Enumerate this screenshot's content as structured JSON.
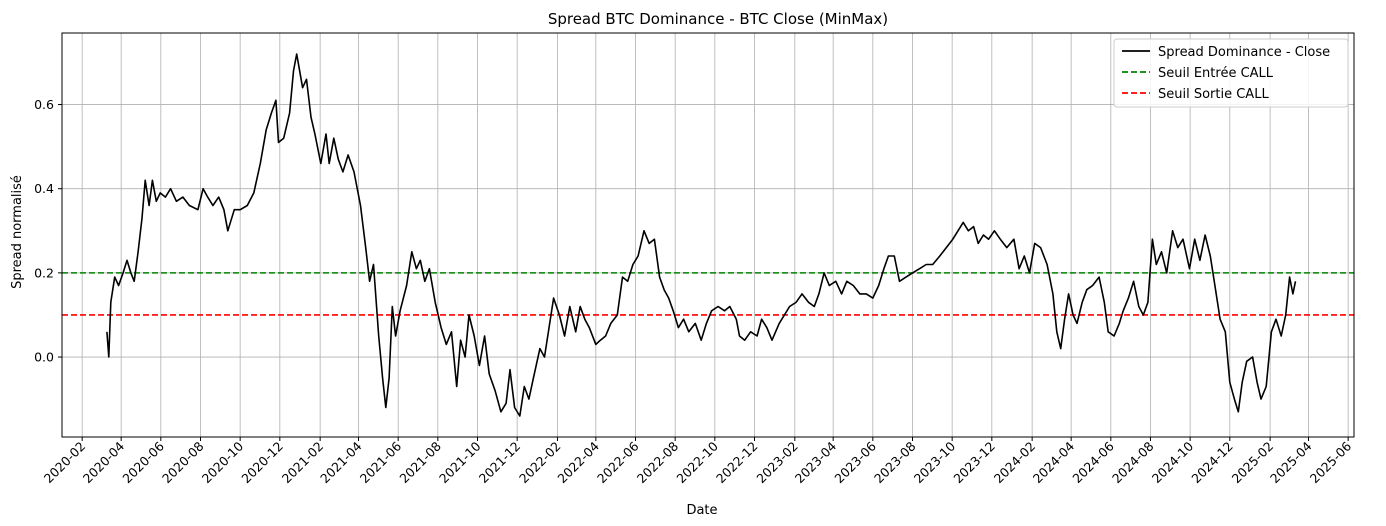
{
  "chart_data": {
    "type": "line",
    "title": "Spread BTC Dominance - BTC Close (MinMax)",
    "xlabel": "Date",
    "ylabel": "Spread normalisé",
    "xlim": [
      "2020-01-01",
      "2025-06-10"
    ],
    "ylim": [
      -0.19,
      0.77
    ],
    "grid": true,
    "legend_position": "top-right",
    "x_ticks": [
      "2020-02",
      "2020-04",
      "2020-06",
      "2020-08",
      "2020-10",
      "2020-12",
      "2021-02",
      "2021-04",
      "2021-06",
      "2021-08",
      "2021-10",
      "2021-12",
      "2022-02",
      "2022-04",
      "2022-06",
      "2022-08",
      "2022-10",
      "2022-12",
      "2023-02",
      "2023-04",
      "2023-06",
      "2023-08",
      "2023-10",
      "2023-12",
      "2024-02",
      "2024-04",
      "2024-06",
      "2024-08",
      "2024-10",
      "2024-12",
      "2025-02",
      "2025-04",
      "2025-06"
    ],
    "y_ticks": [
      0.0,
      0.2,
      0.4,
      0.6
    ],
    "y_tick_labels": [
      "0.0",
      "0.2",
      "0.4",
      "0.6"
    ],
    "series": [
      {
        "name": "Spread Dominance - Close",
        "color": "#000000",
        "style": "solid",
        "points": [
          [
            "2020-03-10",
            0.06
          ],
          [
            "2020-03-13",
            0.0
          ],
          [
            "2020-03-16",
            0.13
          ],
          [
            "2020-03-22",
            0.19
          ],
          [
            "2020-03-28",
            0.17
          ],
          [
            "2020-04-04",
            0.2
          ],
          [
            "2020-04-10",
            0.23
          ],
          [
            "2020-04-16",
            0.2
          ],
          [
            "2020-04-21",
            0.18
          ],
          [
            "2020-04-27",
            0.25
          ],
          [
            "2020-05-03",
            0.33
          ],
          [
            "2020-05-08",
            0.42
          ],
          [
            "2020-05-14",
            0.36
          ],
          [
            "2020-05-19",
            0.42
          ],
          [
            "2020-05-25",
            0.37
          ],
          [
            "2020-05-31",
            0.39
          ],
          [
            "2020-06-08",
            0.38
          ],
          [
            "2020-06-16",
            0.4
          ],
          [
            "2020-06-25",
            0.37
          ],
          [
            "2020-07-05",
            0.38
          ],
          [
            "2020-07-15",
            0.36
          ],
          [
            "2020-07-28",
            0.35
          ],
          [
            "2020-08-05",
            0.4
          ],
          [
            "2020-08-12",
            0.38
          ],
          [
            "2020-08-20",
            0.36
          ],
          [
            "2020-08-29",
            0.38
          ],
          [
            "2020-09-06",
            0.35
          ],
          [
            "2020-09-12",
            0.3
          ],
          [
            "2020-09-22",
            0.35
          ],
          [
            "2020-10-01",
            0.35
          ],
          [
            "2020-10-12",
            0.36
          ],
          [
            "2020-10-22",
            0.39
          ],
          [
            "2020-11-01",
            0.46
          ],
          [
            "2020-11-10",
            0.54
          ],
          [
            "2020-11-18",
            0.58
          ],
          [
            "2020-11-25",
            0.61
          ],
          [
            "2020-11-29",
            0.51
          ],
          [
            "2020-12-07",
            0.52
          ],
          [
            "2020-12-16",
            0.58
          ],
          [
            "2020-12-22",
            0.68
          ],
          [
            "2020-12-27",
            0.72
          ],
          [
            "2021-01-05",
            0.64
          ],
          [
            "2021-01-11",
            0.66
          ],
          [
            "2021-01-18",
            0.57
          ],
          [
            "2021-01-24",
            0.53
          ],
          [
            "2021-02-02",
            0.46
          ],
          [
            "2021-02-10",
            0.53
          ],
          [
            "2021-02-15",
            0.46
          ],
          [
            "2021-02-22",
            0.52
          ],
          [
            "2021-03-01",
            0.47
          ],
          [
            "2021-03-08",
            0.44
          ],
          [
            "2021-03-16",
            0.48
          ],
          [
            "2021-03-25",
            0.44
          ],
          [
            "2021-04-04",
            0.36
          ],
          [
            "2021-04-12",
            0.26
          ],
          [
            "2021-04-18",
            0.18
          ],
          [
            "2021-04-24",
            0.22
          ],
          [
            "2021-05-02",
            0.05
          ],
          [
            "2021-05-08",
            -0.05
          ],
          [
            "2021-05-13",
            -0.12
          ],
          [
            "2021-05-18",
            -0.05
          ],
          [
            "2021-05-23",
            0.12
          ],
          [
            "2021-05-28",
            0.05
          ],
          [
            "2021-06-04",
            0.11
          ],
          [
            "2021-06-14",
            0.17
          ],
          [
            "2021-06-22",
            0.25
          ],
          [
            "2021-06-29",
            0.21
          ],
          [
            "2021-07-05",
            0.23
          ],
          [
            "2021-07-12",
            0.18
          ],
          [
            "2021-07-19",
            0.21
          ],
          [
            "2021-07-28",
            0.13
          ],
          [
            "2021-08-06",
            0.07
          ],
          [
            "2021-08-14",
            0.03
          ],
          [
            "2021-08-22",
            0.06
          ],
          [
            "2021-08-30",
            -0.07
          ],
          [
            "2021-09-05",
            0.04
          ],
          [
            "2021-09-12",
            0.0
          ],
          [
            "2021-09-18",
            0.1
          ],
          [
            "2021-09-26",
            0.05
          ],
          [
            "2021-10-04",
            -0.02
          ],
          [
            "2021-10-12",
            0.05
          ],
          [
            "2021-10-19",
            -0.04
          ],
          [
            "2021-10-28",
            -0.08
          ],
          [
            "2021-11-06",
            -0.13
          ],
          [
            "2021-11-14",
            -0.11
          ],
          [
            "2021-11-20",
            -0.03
          ],
          [
            "2021-11-27",
            -0.12
          ],
          [
            "2021-12-05",
            -0.14
          ],
          [
            "2021-12-12",
            -0.07
          ],
          [
            "2021-12-19",
            -0.1
          ],
          [
            "2021-12-26",
            -0.05
          ],
          [
            "2022-01-05",
            0.02
          ],
          [
            "2022-01-12",
            0.0
          ],
          [
            "2022-01-20",
            0.08
          ],
          [
            "2022-01-26",
            0.14
          ],
          [
            "2022-02-04",
            0.1
          ],
          [
            "2022-02-12",
            0.05
          ],
          [
            "2022-02-20",
            0.12
          ],
          [
            "2022-03-01",
            0.06
          ],
          [
            "2022-03-08",
            0.12
          ],
          [
            "2022-03-15",
            0.09
          ],
          [
            "2022-03-22",
            0.07
          ],
          [
            "2022-04-01",
            0.03
          ],
          [
            "2022-04-08",
            0.04
          ],
          [
            "2022-04-16",
            0.05
          ],
          [
            "2022-04-24",
            0.08
          ],
          [
            "2022-05-04",
            0.1
          ],
          [
            "2022-05-12",
            0.19
          ],
          [
            "2022-05-20",
            0.18
          ],
          [
            "2022-05-28",
            0.22
          ],
          [
            "2022-06-05",
            0.24
          ],
          [
            "2022-06-14",
            0.3
          ],
          [
            "2022-06-22",
            0.27
          ],
          [
            "2022-06-30",
            0.28
          ],
          [
            "2022-07-08",
            0.19
          ],
          [
            "2022-07-15",
            0.16
          ],
          [
            "2022-07-22",
            0.14
          ],
          [
            "2022-07-29",
            0.11
          ],
          [
            "2022-08-06",
            0.07
          ],
          [
            "2022-08-14",
            0.09
          ],
          [
            "2022-08-22",
            0.06
          ],
          [
            "2022-09-01",
            0.08
          ],
          [
            "2022-09-10",
            0.04
          ],
          [
            "2022-09-18",
            0.08
          ],
          [
            "2022-09-26",
            0.11
          ],
          [
            "2022-10-06",
            0.12
          ],
          [
            "2022-10-16",
            0.11
          ],
          [
            "2022-10-24",
            0.12
          ],
          [
            "2022-11-03",
            0.09
          ],
          [
            "2022-11-08",
            0.05
          ],
          [
            "2022-11-16",
            0.04
          ],
          [
            "2022-11-25",
            0.06
          ],
          [
            "2022-12-05",
            0.05
          ],
          [
            "2022-12-12",
            0.09
          ],
          [
            "2022-12-20",
            0.07
          ],
          [
            "2022-12-28",
            0.04
          ],
          [
            "2023-01-08",
            0.08
          ],
          [
            "2023-01-16",
            0.1
          ],
          [
            "2023-01-24",
            0.12
          ],
          [
            "2023-02-03",
            0.13
          ],
          [
            "2023-02-12",
            0.15
          ],
          [
            "2023-02-22",
            0.13
          ],
          [
            "2023-03-03",
            0.12
          ],
          [
            "2023-03-10",
            0.15
          ],
          [
            "2023-03-18",
            0.2
          ],
          [
            "2023-03-26",
            0.17
          ],
          [
            "2023-04-05",
            0.18
          ],
          [
            "2023-04-14",
            0.15
          ],
          [
            "2023-04-22",
            0.18
          ],
          [
            "2023-05-02",
            0.17
          ],
          [
            "2023-05-12",
            0.15
          ],
          [
            "2023-05-22",
            0.15
          ],
          [
            "2023-06-01",
            0.14
          ],
          [
            "2023-06-10",
            0.17
          ],
          [
            "2023-06-18",
            0.21
          ],
          [
            "2023-06-25",
            0.24
          ],
          [
            "2023-07-04",
            0.24
          ],
          [
            "2023-07-12",
            0.18
          ],
          [
            "2023-07-22",
            0.19
          ],
          [
            "2023-08-01",
            0.2
          ],
          [
            "2023-08-12",
            0.21
          ],
          [
            "2023-08-22",
            0.22
          ],
          [
            "2023-09-01",
            0.22
          ],
          [
            "2023-09-12",
            0.24
          ],
          [
            "2023-09-22",
            0.26
          ],
          [
            "2023-10-02",
            0.28
          ],
          [
            "2023-10-10",
            0.3
          ],
          [
            "2023-10-18",
            0.32
          ],
          [
            "2023-10-26",
            0.3
          ],
          [
            "2023-11-03",
            0.31
          ],
          [
            "2023-11-10",
            0.27
          ],
          [
            "2023-11-18",
            0.29
          ],
          [
            "2023-11-26",
            0.28
          ],
          [
            "2023-12-05",
            0.3
          ],
          [
            "2023-12-14",
            0.28
          ],
          [
            "2023-12-24",
            0.26
          ],
          [
            "2024-01-04",
            0.28
          ],
          [
            "2024-01-12",
            0.21
          ],
          [
            "2024-01-20",
            0.24
          ],
          [
            "2024-01-28",
            0.2
          ],
          [
            "2024-02-05",
            0.27
          ],
          [
            "2024-02-14",
            0.26
          ],
          [
            "2024-02-24",
            0.22
          ],
          [
            "2024-03-04",
            0.15
          ],
          [
            "2024-03-10",
            0.06
          ],
          [
            "2024-03-16",
            0.02
          ],
          [
            "2024-03-22",
            0.09
          ],
          [
            "2024-03-28",
            0.15
          ],
          [
            "2024-04-04",
            0.1
          ],
          [
            "2024-04-10",
            0.08
          ],
          [
            "2024-04-18",
            0.13
          ],
          [
            "2024-04-25",
            0.16
          ],
          [
            "2024-05-04",
            0.17
          ],
          [
            "2024-05-14",
            0.19
          ],
          [
            "2024-05-22",
            0.13
          ],
          [
            "2024-05-28",
            0.06
          ],
          [
            "2024-06-06",
            0.05
          ],
          [
            "2024-06-14",
            0.08
          ],
          [
            "2024-06-20",
            0.11
          ],
          [
            "2024-06-28",
            0.14
          ],
          [
            "2024-07-06",
            0.18
          ],
          [
            "2024-07-14",
            0.12
          ],
          [
            "2024-07-21",
            0.1
          ],
          [
            "2024-07-28",
            0.13
          ],
          [
            "2024-08-04",
            0.28
          ],
          [
            "2024-08-10",
            0.22
          ],
          [
            "2024-08-18",
            0.25
          ],
          [
            "2024-08-26",
            0.2
          ],
          [
            "2024-09-04",
            0.3
          ],
          [
            "2024-09-12",
            0.26
          ],
          [
            "2024-09-20",
            0.28
          ],
          [
            "2024-09-30",
            0.21
          ],
          [
            "2024-10-08",
            0.28
          ],
          [
            "2024-10-16",
            0.23
          ],
          [
            "2024-10-24",
            0.29
          ],
          [
            "2024-11-01",
            0.24
          ],
          [
            "2024-11-08",
            0.17
          ],
          [
            "2024-11-16",
            0.09
          ],
          [
            "2024-11-24",
            0.06
          ],
          [
            "2024-12-01",
            -0.06
          ],
          [
            "2024-12-08",
            -0.1
          ],
          [
            "2024-12-14",
            -0.13
          ],
          [
            "2024-12-20",
            -0.06
          ],
          [
            "2024-12-27",
            -0.01
          ],
          [
            "2025-01-05",
            0.0
          ],
          [
            "2025-01-12",
            -0.06
          ],
          [
            "2025-01-18",
            -0.1
          ],
          [
            "2025-01-26",
            -0.07
          ],
          [
            "2025-02-03",
            0.06
          ],
          [
            "2025-02-10",
            0.09
          ],
          [
            "2025-02-18",
            0.05
          ],
          [
            "2025-02-25",
            0.1
          ],
          [
            "2025-03-03",
            0.19
          ],
          [
            "2025-03-08",
            0.15
          ],
          [
            "2025-03-12",
            0.18
          ]
        ]
      },
      {
        "name": "Seuil Entrée CALL",
        "color": "#008000",
        "style": "dashed",
        "value": 0.2
      },
      {
        "name": "Seuil Sortie CALL",
        "color": "#ff0000",
        "style": "dashed",
        "value": 0.1
      }
    ]
  }
}
